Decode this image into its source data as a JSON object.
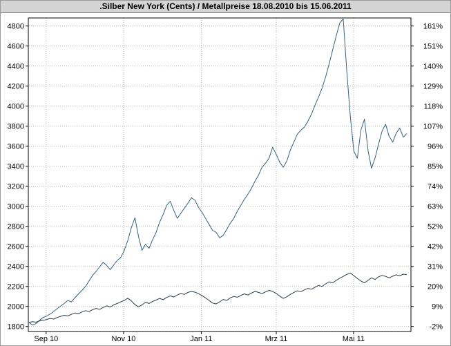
{
  "title": ".Silber New York (Cents) / Metallpreise 18.08.2010 bis 15.06.2011",
  "colors": {
    "title_bar_bg": "#d4d4d4",
    "plot_bg": "#ffffff",
    "grid": "#b8b8b8",
    "axis": "#000000",
    "series_silver": "#33607f",
    "series_metall": "#2a3a47"
  },
  "chart_data": {
    "type": "line",
    "title": ".Silber New York (Cents) / Metallpreise 18.08.2010 bis 15.06.2011",
    "date_range": {
      "start": "18.08.2010",
      "end": "15.06.2011"
    },
    "xlabel": "",
    "ylabel": "",
    "grid": true,
    "legend_position": "none",
    "ylim": [
      1800,
      4800
    ],
    "x_axis": {
      "labels": [
        "Sep 10",
        "Nov 10",
        "Jan 11",
        "Mrz 11",
        "Mai 11"
      ],
      "label_positions": [
        0.0465,
        0.249,
        0.452,
        0.648,
        0.85
      ]
    },
    "y_axis_left": {
      "min": 1800,
      "max": 4800,
      "step": 200
    },
    "y_axis_right": {
      "labels_top_to_bottom": [
        "161%",
        "151%",
        "140%",
        "129%",
        "118%",
        "107%",
        "96%",
        "85%",
        "74%",
        "63%",
        "52%",
        "42%",
        "31%",
        "20%",
        "9%",
        "-2%"
      ]
    },
    "series": [
      {
        "name": "Silber New York (Cents)",
        "color": "#33607f",
        "values": [
          1840,
          1815,
          1830,
          1862,
          1890,
          1905,
          1925,
          1950,
          1978,
          2005,
          2030,
          2060,
          2045,
          2088,
          2125,
          2160,
          2200,
          2255,
          2310,
          2350,
          2395,
          2440,
          2410,
          2368,
          2415,
          2460,
          2490,
          2560,
          2660,
          2790,
          2885,
          2700,
          2560,
          2620,
          2580,
          2665,
          2740,
          2840,
          2920,
          3010,
          3050,
          2960,
          2880,
          2930,
          2980,
          3030,
          3085,
          3060,
          2990,
          2940,
          2880,
          2820,
          2760,
          2740,
          2685,
          2710,
          2770,
          2830,
          2880,
          2950,
          3010,
          3070,
          3120,
          3180,
          3250,
          3310,
          3390,
          3430,
          3480,
          3590,
          3520,
          3440,
          3390,
          3450,
          3560,
          3640,
          3720,
          3760,
          3790,
          3850,
          3920,
          4010,
          4090,
          4180,
          4290,
          4420,
          4560,
          4700,
          4830,
          4870,
          4350,
          3900,
          3550,
          3480,
          3760,
          3870,
          3560,
          3380,
          3480,
          3620,
          3750,
          3820,
          3700,
          3640,
          3730,
          3780,
          3690,
          3725
        ]
      },
      {
        "name": "Metallpreise",
        "color": "#2a3a47",
        "values": [
          1840,
          1848,
          1843,
          1856,
          1862,
          1870,
          1880,
          1874,
          1890,
          1902,
          1912,
          1905,
          1921,
          1935,
          1928,
          1945,
          1958,
          1950,
          1968,
          1980,
          1971,
          1990,
          2006,
          1995,
          2016,
          2030,
          2046,
          2060,
          2082,
          2055,
          2018,
          1996,
          2016,
          2040,
          2030,
          2050,
          2064,
          2080,
          2068,
          2090,
          2106,
          2094,
          2114,
          2130,
          2120,
          2140,
          2150,
          2142,
          2128,
          2108,
          2085,
          2060,
          2034,
          2025,
          2046,
          2070,
          2060,
          2086,
          2100,
          2092,
          2110,
          2126,
          2114,
          2134,
          2150,
          2140,
          2128,
          2146,
          2160,
          2150,
          2130,
          2104,
          2080,
          2096,
          2120,
          2140,
          2156,
          2148,
          2165,
          2180,
          2172,
          2192,
          2210,
          2200,
          2226,
          2246,
          2236,
          2260,
          2282,
          2300,
          2320,
          2334,
          2308,
          2280,
          2254,
          2236,
          2260,
          2286,
          2270,
          2296,
          2310,
          2300,
          2286,
          2302,
          2316,
          2306,
          2322,
          2318
        ]
      }
    ]
  }
}
